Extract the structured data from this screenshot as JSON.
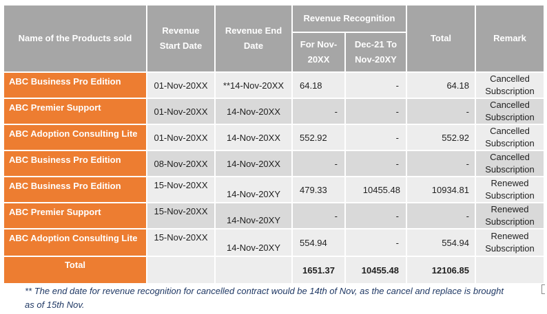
{
  "headers": {
    "product": "Name of the Products sold",
    "start": "Revenue Start Date",
    "end": "Revenue End Date",
    "recognition": "Revenue Recognition",
    "col_a": "For Nov-20XX",
    "col_b": "Dec-21 To Nov-20XY",
    "total": "Total",
    "remark": "Remark"
  },
  "rows": [
    {
      "name": "ABC Business Pro Edition",
      "start": "01-Nov-20XX",
      "end": "**14-Nov-20XX",
      "a": "64.18",
      "b": "-",
      "total": "64.18",
      "remark": "Cancelled Subscription"
    },
    {
      "name": "ABC Premier Support",
      "start": "01-Nov-20XX",
      "end": "14-Nov-20XX",
      "a": "-",
      "b": "-",
      "total": "-",
      "remark": "Cancelled Subscription"
    },
    {
      "name": "ABC Adoption Consulting Lite",
      "start": "01-Nov-20XX",
      "end": "14-Nov-20XX",
      "a": "552.92",
      "b": "-",
      "total": "552.92",
      "remark": "Cancelled Subscription"
    },
    {
      "name": "ABC Business Pro Edition",
      "start": "08-Nov-20XX",
      "end": "14-Nov-20XX",
      "a": "-",
      "b": "-",
      "total": "-",
      "remark": "Cancelled Subscription"
    },
    {
      "name": "ABC Business Pro Edition",
      "start": "15-Nov-20XX",
      "end": "14-Nov-20XY",
      "a": "479.33",
      "b": "10455.48",
      "total": "10934.81",
      "remark": "Renewed Subscription"
    },
    {
      "name": "ABC Premier Support",
      "start": "15-Nov-20XX",
      "end": "14-Nov-20XY",
      "a": "-",
      "b": "-",
      "total": "-",
      "remark": "Renewed Subscription"
    },
    {
      "name": "ABC Adoption Consulting Lite",
      "start": "15-Nov-20XX",
      "end": "14-Nov-20XY",
      "a": "554.94",
      "b": "-",
      "total": "554.94",
      "remark": "Renewed Subscription"
    }
  ],
  "totals": {
    "label": "Total",
    "a": "1651.37",
    "b": "10455.48",
    "total": "12106.85"
  },
  "footnote": "** The end date for revenue recognition for cancelled contract would be 14th of Nov, as the cancel and replace is brought as of 15th Nov.",
  "colors": {
    "header_gray": "#a6a6a6",
    "orange": "#ed7d31",
    "row_light": "#ededed",
    "row_dark": "#d9d9d9",
    "note_blue": "#1f3864"
  }
}
